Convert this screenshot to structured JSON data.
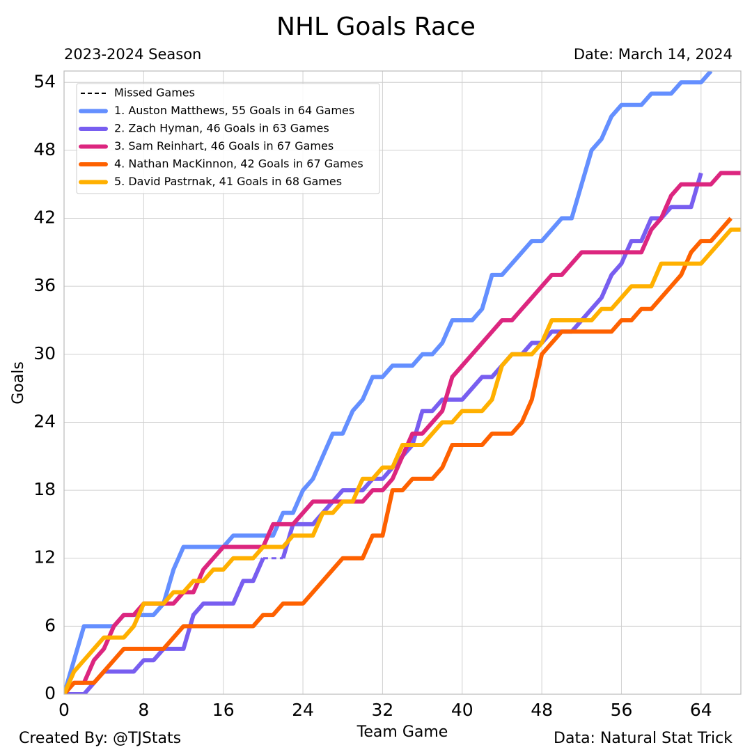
{
  "chart_data": {
    "type": "line",
    "title": "NHL Goals Race",
    "subtitle": "2023-2024 Season",
    "date_label": "Date: March 14, 2024",
    "x_label": "Team Game",
    "y_label": "Goals",
    "credit": "Created By: @TJStats",
    "source": "Data: Natural Stat Trick",
    "missed_games_label": "Missed Games",
    "legend_position": "upper left",
    "grid": true,
    "xlim": [
      0,
      68
    ],
    "ylim": [
      0,
      55
    ],
    "xticks": [
      0,
      8,
      16,
      24,
      32,
      40,
      48,
      56,
      64
    ],
    "yticks": [
      0,
      6,
      12,
      18,
      24,
      30,
      36,
      42,
      48,
      54
    ],
    "x": [
      0,
      1,
      2,
      3,
      4,
      5,
      6,
      7,
      8,
      9,
      10,
      11,
      12,
      13,
      14,
      15,
      16,
      17,
      18,
      19,
      20,
      21,
      22,
      23,
      24,
      25,
      26,
      27,
      28,
      29,
      30,
      31,
      32,
      33,
      34,
      35,
      36,
      37,
      38,
      39,
      40,
      41,
      42,
      43,
      44,
      45,
      46,
      47,
      48,
      49,
      50,
      51,
      52,
      53,
      54,
      55,
      56,
      57,
      58,
      59,
      60,
      61,
      62,
      63,
      64,
      65,
      66,
      67,
      68
    ],
    "series": [
      {
        "name": "1. Auston Matthews, 55 Goals in 64 Games",
        "color": "#648FFF",
        "values": [
          0,
          3,
          6,
          6,
          6,
          6,
          7,
          7,
          7,
          7,
          8,
          11,
          13,
          13,
          13,
          13,
          13,
          14,
          14,
          14,
          14,
          14,
          16,
          16,
          18,
          19,
          21,
          23,
          23,
          25,
          26,
          28,
          28,
          29,
          29,
          29,
          30,
          30,
          31,
          33,
          33,
          33,
          34,
          37,
          37,
          38,
          39,
          40,
          40,
          41,
          42,
          42,
          45,
          48,
          49,
          51,
          52,
          52,
          52,
          53,
          53,
          53,
          54,
          54,
          54,
          55,
          null,
          null,
          null
        ]
      },
      {
        "name": "2. Zach Hyman, 46 Goals in 63 Games",
        "color": "#785EF0",
        "values": [
          0,
          0,
          0,
          1,
          2,
          2,
          2,
          2,
          3,
          3,
          4,
          4,
          4,
          7,
          8,
          8,
          8,
          8,
          10,
          10,
          12,
          null,
          12,
          15,
          15,
          15,
          16,
          17,
          18,
          18,
          18,
          19,
          19,
          20,
          21,
          22,
          25,
          25,
          26,
          26,
          26,
          27,
          28,
          28,
          29,
          30,
          30,
          31,
          31,
          32,
          32,
          32,
          33,
          34,
          35,
          37,
          38,
          40,
          40,
          42,
          42,
          43,
          43,
          43,
          46,
          null,
          null,
          null,
          null
        ]
      },
      {
        "name": "3. Sam Reinhart, 46 Goals in 67 Games",
        "color": "#DC267F",
        "values": [
          0,
          1,
          1,
          3,
          4,
          6,
          7,
          7,
          8,
          8,
          8,
          8,
          9,
          9,
          11,
          12,
          13,
          13,
          13,
          13,
          13,
          15,
          15,
          15,
          16,
          17,
          17,
          17,
          17,
          17,
          17,
          18,
          18,
          19,
          21,
          23,
          23,
          24,
          25,
          28,
          29,
          30,
          31,
          32,
          33,
          33,
          34,
          35,
          36,
          37,
          37,
          38,
          39,
          39,
          39,
          39,
          39,
          39,
          39,
          41,
          42,
          44,
          45,
          45,
          45,
          45,
          46,
          46,
          46
        ]
      },
      {
        "name": "4. Nathan MacKinnon, 42 Goals in 67 Games",
        "color": "#FE6100",
        "values": [
          0,
          1,
          1,
          1,
          2,
          3,
          4,
          4,
          4,
          4,
          4,
          5,
          6,
          6,
          6,
          6,
          6,
          6,
          6,
          6,
          7,
          7,
          8,
          8,
          8,
          9,
          10,
          11,
          12,
          12,
          12,
          14,
          14,
          18,
          18,
          19,
          19,
          19,
          20,
          22,
          22,
          22,
          22,
          23,
          23,
          23,
          24,
          26,
          30,
          31,
          32,
          32,
          32,
          32,
          32,
          32,
          33,
          33,
          34,
          34,
          35,
          36,
          37,
          39,
          40,
          40,
          41,
          42,
          null
        ]
      },
      {
        "name": "5. David Pastrnak, 41 Goals in 68 Games",
        "color": "#FFB000",
        "values": [
          0,
          2,
          3,
          4,
          5,
          5,
          5,
          6,
          8,
          8,
          8,
          9,
          9,
          10,
          10,
          11,
          11,
          12,
          12,
          12,
          13,
          13,
          13,
          14,
          14,
          14,
          16,
          16,
          17,
          17,
          19,
          19,
          20,
          20,
          22,
          22,
          22,
          23,
          24,
          24,
          25,
          25,
          25,
          26,
          29,
          30,
          30,
          30,
          31,
          33,
          33,
          33,
          33,
          33,
          34,
          34,
          35,
          36,
          36,
          36,
          38,
          38,
          38,
          38,
          38,
          39,
          40,
          41,
          41
        ]
      }
    ]
  }
}
